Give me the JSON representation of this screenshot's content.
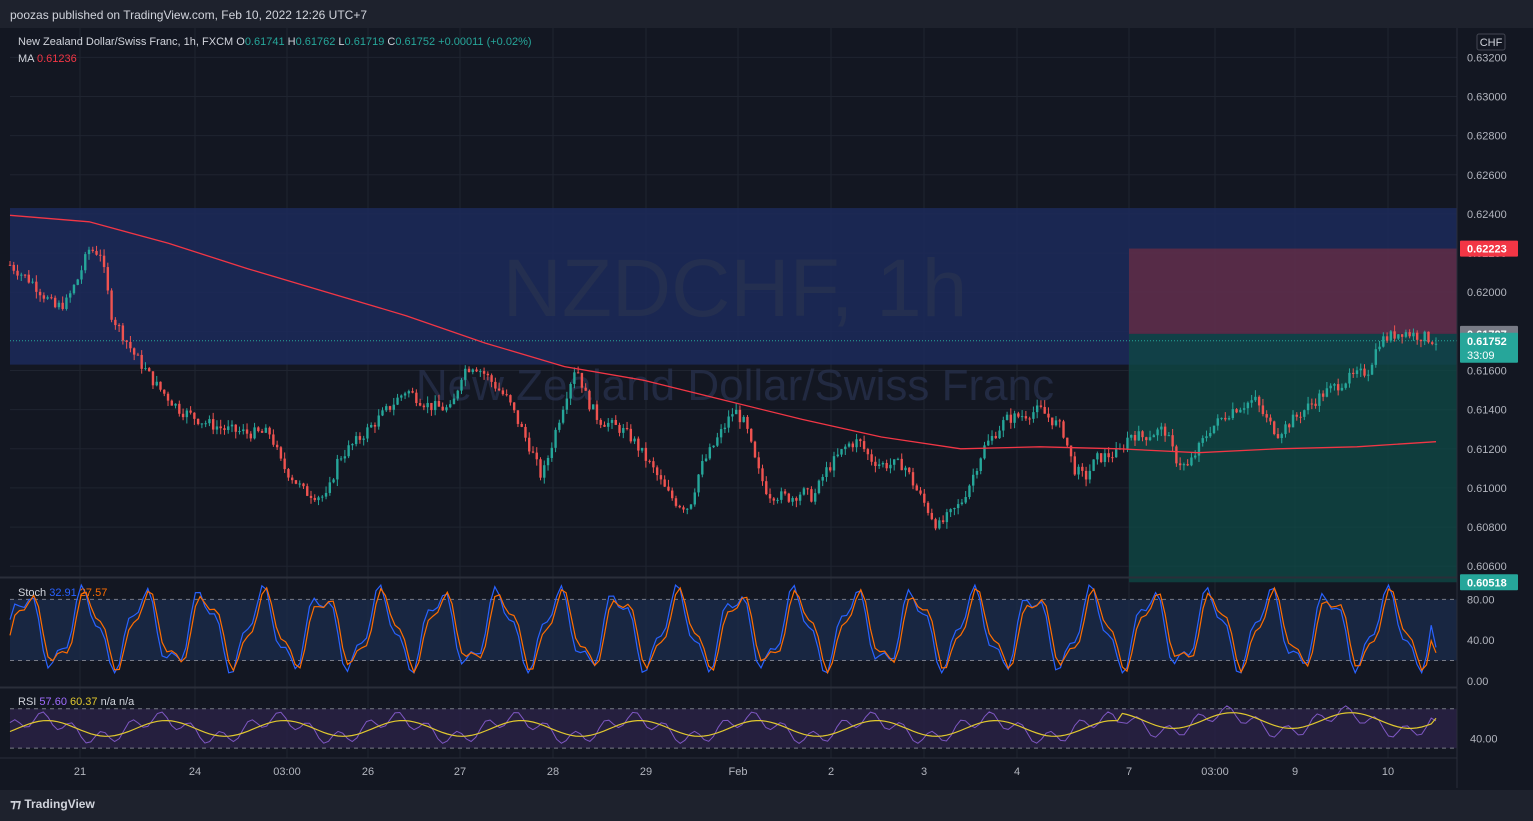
{
  "header": {
    "published": "poozas published on TradingView.com, Feb 10, 2022 12:26 UTC+7"
  },
  "footer": {
    "brand": "TradingView"
  },
  "legend": {
    "symbol": "New Zealand Dollar/Swiss Franc, 1h, FXCM",
    "o_label": "O",
    "o_value": "0.61741",
    "h_label": "H",
    "h_value": "0.61762",
    "l_label": "L",
    "l_value": "0.61719",
    "c_label": "C",
    "c_value": "0.61752",
    "change": "+0.00011 (+0.02%)",
    "ma_label": "MA",
    "ma_value": "0.61236",
    "stoch_label": "Stoch",
    "stoch_k": "32.91",
    "stoch_d": "27.57",
    "rsi_label": "RSI",
    "rsi_value": "57.60",
    "rsi_ma": "60.37",
    "rsi_na1": "n/a",
    "rsi_na2": "n/a"
  },
  "watermark": {
    "line1": "NZDCHF, 1h",
    "line2": "New Zealand Dollar/Swiss Franc"
  },
  "colors": {
    "background": "#131722",
    "up": "#26a69a",
    "down": "#ef5350",
    "ma": "#f23645",
    "stoch_k": "#2962ff",
    "stoch_d": "#ff6d00",
    "rsi": "#7e57c2",
    "rsi_ma": "#e0c82f"
  },
  "chart_data": {
    "type": "candlestick",
    "currency": "CHF",
    "price_ticks": [
      "0.63200",
      "0.63000",
      "0.62800",
      "0.62600",
      "0.62400",
      "0.62200",
      "0.62000",
      "0.61800",
      "0.61600",
      "0.61400",
      "0.61200",
      "0.61000",
      "0.60800",
      "0.60600"
    ],
    "ylim": [
      0.6055,
      0.6335
    ],
    "x_ticks": [
      "21",
      "24",
      "03:00",
      "26",
      "27",
      "28",
      "29",
      "Feb",
      "2",
      "3",
      "4",
      "7",
      "03:00",
      "9",
      "10"
    ],
    "price_labels": [
      {
        "text": "0.62223",
        "value": 0.62223,
        "color": "#f23645"
      },
      {
        "text": "0.61787",
        "value": 0.61787,
        "color": "#787b86"
      },
      {
        "text": "0.61752",
        "value": 0.61752,
        "color": "#26a69a",
        "sub": "33:09"
      },
      {
        "text": "0.60518",
        "value": 0.60518,
        "color": "#26a69a"
      }
    ],
    "candles_close_path": [
      [
        0,
        0.6214
      ],
      [
        2,
        0.6205
      ],
      [
        4,
        0.6192
      ],
      [
        5,
        0.6195
      ],
      [
        6,
        0.6207
      ],
      [
        7,
        0.6222
      ],
      [
        8,
        0.622
      ],
      [
        9,
        0.6188
      ],
      [
        11,
        0.6168
      ],
      [
        13,
        0.6152
      ],
      [
        15,
        0.614
      ],
      [
        17,
        0.6134
      ],
      [
        19,
        0.613
      ],
      [
        21,
        0.6128
      ],
      [
        23,
        0.6128
      ],
      [
        24,
        0.6112
      ],
      [
        26,
        0.6098
      ],
      [
        28,
        0.6095
      ],
      [
        29,
        0.6115
      ],
      [
        31,
        0.6126
      ],
      [
        33,
        0.6138
      ],
      [
        35,
        0.615
      ],
      [
        37,
        0.6142
      ],
      [
        39,
        0.614
      ],
      [
        40,
        0.616
      ],
      [
        41,
        0.6163
      ],
      [
        42,
        0.6158
      ],
      [
        44,
        0.6145
      ],
      [
        46,
        0.612
      ],
      [
        47,
        0.6105
      ],
      [
        49,
        0.6145
      ],
      [
        50,
        0.6163
      ],
      [
        51,
        0.6145
      ],
      [
        52,
        0.6135
      ],
      [
        54,
        0.613
      ],
      [
        55,
        0.6125
      ],
      [
        57,
        0.6108
      ],
      [
        58,
        0.6098
      ],
      [
        59,
        0.6092
      ],
      [
        60,
        0.609
      ],
      [
        61,
        0.611
      ],
      [
        63,
        0.613
      ],
      [
        64,
        0.614
      ],
      [
        65,
        0.6132
      ],
      [
        66,
        0.611
      ],
      [
        67,
        0.6097
      ],
      [
        69,
        0.6095
      ],
      [
        70,
        0.6098
      ],
      [
        71,
        0.6095
      ],
      [
        72,
        0.6108
      ],
      [
        74,
        0.6122
      ],
      [
        75,
        0.6124
      ],
      [
        76,
        0.6115
      ],
      [
        77,
        0.6112
      ],
      [
        79,
        0.6112
      ],
      [
        80,
        0.61
      ],
      [
        81,
        0.609
      ],
      [
        82,
        0.608
      ],
      [
        84,
        0.6092
      ],
      [
        85,
        0.6105
      ],
      [
        86,
        0.612
      ],
      [
        88,
        0.6135
      ],
      [
        90,
        0.6138
      ],
      [
        91,
        0.614
      ],
      [
        93,
        0.613
      ],
      [
        94,
        0.611
      ],
      [
        95,
        0.6105
      ],
      [
        96,
        0.6115
      ],
      [
        98,
        0.6118
      ],
      [
        99,
        0.6128
      ],
      [
        100,
        0.6126
      ],
      [
        102,
        0.613
      ],
      [
        103,
        0.6115
      ],
      [
        104,
        0.611
      ],
      [
        106,
        0.613
      ],
      [
        108,
        0.614
      ],
      [
        110,
        0.6145
      ],
      [
        111,
        0.6135
      ],
      [
        112,
        0.6128
      ],
      [
        114,
        0.6138
      ],
      [
        116,
        0.6148
      ],
      [
        118,
        0.6155
      ],
      [
        120,
        0.616
      ],
      [
        121,
        0.6175
      ],
      [
        123,
        0.618
      ],
      [
        125,
        0.6177
      ],
      [
        126,
        0.6175
      ]
    ],
    "ma_path": [
      [
        0,
        0.62393
      ],
      [
        7,
        0.6236
      ],
      [
        14,
        0.6225
      ],
      [
        21,
        0.6212
      ],
      [
        28,
        0.62
      ],
      [
        35,
        0.6188
      ],
      [
        42,
        0.6174
      ],
      [
        49,
        0.6162
      ],
      [
        56,
        0.6155
      ],
      [
        63,
        0.6145
      ],
      [
        70,
        0.6135
      ],
      [
        77,
        0.6126
      ],
      [
        84,
        0.612
      ],
      [
        91,
        0.6121
      ],
      [
        98,
        0.612
      ],
      [
        105,
        0.6118
      ],
      [
        112,
        0.612
      ],
      [
        119,
        0.6121
      ],
      [
        126,
        0.61236
      ]
    ],
    "position": {
      "entry": 0.61787,
      "target": 0.62223,
      "stop": 0.60518,
      "start_index": 98
    },
    "zone": {
      "top": 0.6243,
      "bottom": 0.6163
    },
    "stoch": {
      "ticks": [
        "80.00",
        "40.00",
        "0.00"
      ],
      "ylim": [
        -5,
        100
      ],
      "upper": 80,
      "lower": 20,
      "k": 32.91,
      "d": 27.57
    },
    "rsi": {
      "ticks": [
        "40.00"
      ],
      "ylim": [
        20,
        90
      ],
      "upper": 70,
      "lower": 30,
      "value": 57.6,
      "ma": 60.37
    }
  }
}
